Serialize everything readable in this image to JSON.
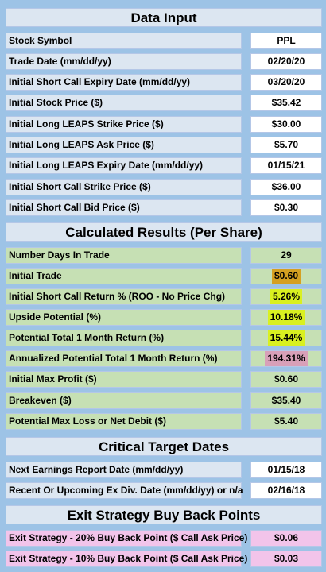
{
  "sections": {
    "data_input": "Data Input",
    "calculated": "Calculated Results (Per Share)",
    "critical": "Critical Target Dates",
    "exit": "Exit Strategy Buy Back Points"
  },
  "data_input": [
    {
      "label": "Stock Symbol",
      "value": "PPL"
    },
    {
      "label": "Trade Date  (mm/dd/yy)",
      "value": "02/20/20"
    },
    {
      "label": "Initial Short Call Expiry Date  (mm/dd/yy)",
      "value": "03/20/20"
    },
    {
      "label": "Initial Stock Price ($)",
      "value": "$35.42"
    },
    {
      "label": "Initial Long LEAPS Strike Price ($)",
      "value": "$30.00"
    },
    {
      "label": "Initial Long LEAPS Ask Price ($)",
      "value": "$5.70"
    },
    {
      "label": "Initial Long LEAPS Expiry Date (mm/dd/yy)",
      "value": "01/15/21"
    },
    {
      "label": "Initial Short Call Strike Price ($)",
      "value": "$36.00"
    },
    {
      "label": "Initial Short Call Bid Price ($)",
      "value": "$0.30"
    }
  ],
  "calculated": [
    {
      "label": "Number Days In Trade",
      "value": "29"
    },
    {
      "label": "Initial Trade",
      "value": "$0.60"
    },
    {
      "label": "Initial Short Call Return % (ROO - No Price Chg)",
      "value": "5.26%"
    },
    {
      "label": "Upside Potential (%)",
      "value": "10.18%"
    },
    {
      "label": "Potential Total 1 Month Return (%)",
      "value": "15.44%"
    },
    {
      "label": "Annualized Potential Total 1 Month Return (%)",
      "value": "194.31%"
    },
    {
      "label": "Initial Max Profit ($)",
      "value": "$0.60"
    },
    {
      "label": "Breakeven ($)",
      "value": "$35.40"
    },
    {
      "label": "Potential Max Loss or Net Debit ($)",
      "value": "$5.40"
    }
  ],
  "critical": [
    {
      "label": "Next Earnings Report Date  (mm/dd/yy)",
      "value": "01/15/18"
    },
    {
      "label": "Recent Or Upcoming Ex Div. Date (mm/dd/yy) or n/a",
      "value": "02/16/18"
    }
  ],
  "exit": [
    {
      "label": "Exit Strategy - 20% Buy Back Point ($ Call Ask Price)",
      "value": "$0.06"
    },
    {
      "label": "Exit Strategy - 10% Buy Back Point ($ Call Ask Price)",
      "value": "$0.03"
    }
  ],
  "colors": {
    "background": "#9dc3e6",
    "header": "#dce6f1",
    "input_value": "#ffffff",
    "results": "#c6e0b4",
    "exit": "#f2c4ea",
    "highlight_orange": "#d5a021",
    "highlight_yellow": "#d9f020",
    "highlight_rose": "#d8a0b8"
  }
}
